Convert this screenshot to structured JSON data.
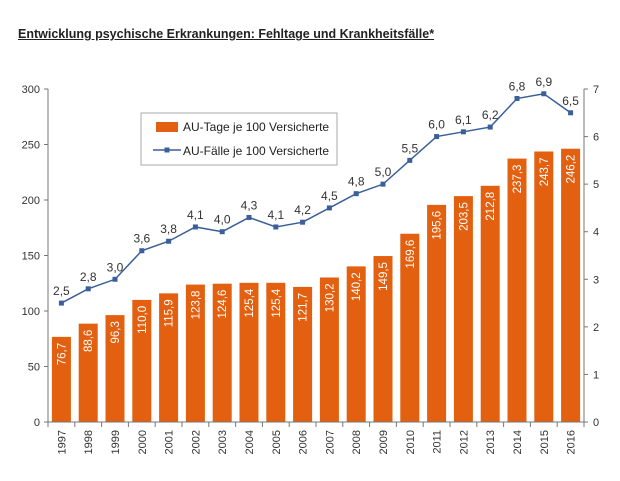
{
  "page_title": "Entwicklung psychische Erkrankungen: Fehltage und Krankheitsfälle*",
  "colors": {
    "bar": "#E2600F",
    "line": "#3A5F9A",
    "axis": "#777777",
    "grid": "#cccccc"
  },
  "chart_data": {
    "type": "bar",
    "title": "Entwicklung psychische Erkrankungen: Fehltage und Krankheitsfälle*",
    "categories": [
      "1997",
      "1998",
      "1999",
      "2000",
      "2001",
      "2002",
      "2003",
      "2004",
      "2005",
      "2006",
      "2007",
      "2008",
      "2009",
      "2010",
      "2011",
      "2012",
      "2013",
      "2014",
      "2015",
      "2016"
    ],
    "ylim": [
      0,
      300
    ],
    "y_ticks": [
      "0",
      "50",
      "100",
      "150",
      "200",
      "250",
      "300"
    ],
    "y2lim": [
      0,
      7
    ],
    "y2_ticks": [
      "0",
      "1",
      "2",
      "3",
      "4",
      "5",
      "6",
      "7"
    ],
    "legend_position": "top-left",
    "series": [
      {
        "name": "AU-Tage je 100 Versicherte",
        "type": "bar",
        "axis": "left",
        "values": [
          76.7,
          88.6,
          96.3,
          110.0,
          115.9,
          123.8,
          124.6,
          125.4,
          125.4,
          121.7,
          130.2,
          140.2,
          149.5,
          169.6,
          195.6,
          203.5,
          212.8,
          237.3,
          243.7,
          246.2
        ],
        "labels": [
          "76,7",
          "88,6",
          "96,3",
          "110,0",
          "115,9",
          "123,8",
          "124,6",
          "125,4",
          "125,4",
          "121,7",
          "130,2",
          "140,2",
          "149,5",
          "169,6",
          "195,6",
          "203,5",
          "212,8",
          "237,3",
          "243,7",
          "246,2"
        ]
      },
      {
        "name": "AU-Fälle je 100 Versicherte",
        "type": "line",
        "axis": "right",
        "values": [
          2.5,
          2.8,
          3.0,
          3.6,
          3.8,
          4.1,
          4.0,
          4.3,
          4.1,
          4.2,
          4.5,
          4.8,
          5.0,
          5.5,
          6.0,
          6.1,
          6.2,
          6.8,
          6.9,
          6.5
        ],
        "labels": [
          "2,5",
          "2,8",
          "3,0",
          "3,6",
          "3,8",
          "4,1",
          "4,0",
          "4,3",
          "4,1",
          "4,2",
          "4,5",
          "4,8",
          "5,0",
          "5,5",
          "6,0",
          "6,1",
          "6,2",
          "6,8",
          "6,9",
          "6,5"
        ]
      }
    ]
  }
}
